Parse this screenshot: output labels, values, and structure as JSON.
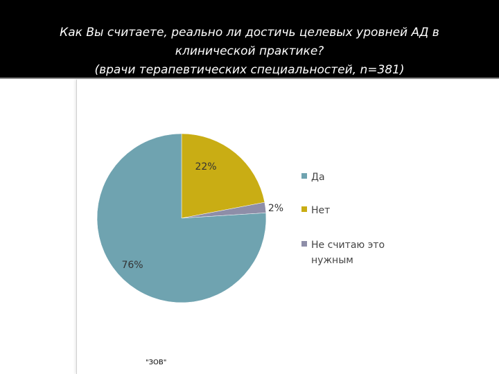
{
  "header": {
    "title_lines": [
      "Как Вы считаете, реально ли достичь целевых уровней АД в",
      "клинической практике?",
      "(врачи терапевтических специальностей, n=381)"
    ]
  },
  "chart_data": {
    "type": "pie",
    "title": "Как Вы считаете, реально ли достичь целевых уровней АД в клинической практике? (врачи терапевтических специальностей, n=381)",
    "categories": [
      "Да",
      "Нет",
      "Не считаю это нужным"
    ],
    "values": [
      76,
      22,
      2
    ],
    "data_labels": [
      "76%",
      "22%",
      "2%"
    ],
    "colors": [
      "#6fa3b0",
      "#c9ad14",
      "#8e8ea8"
    ],
    "legend_position": "right"
  },
  "footnote": "\"ЗОВ\""
}
